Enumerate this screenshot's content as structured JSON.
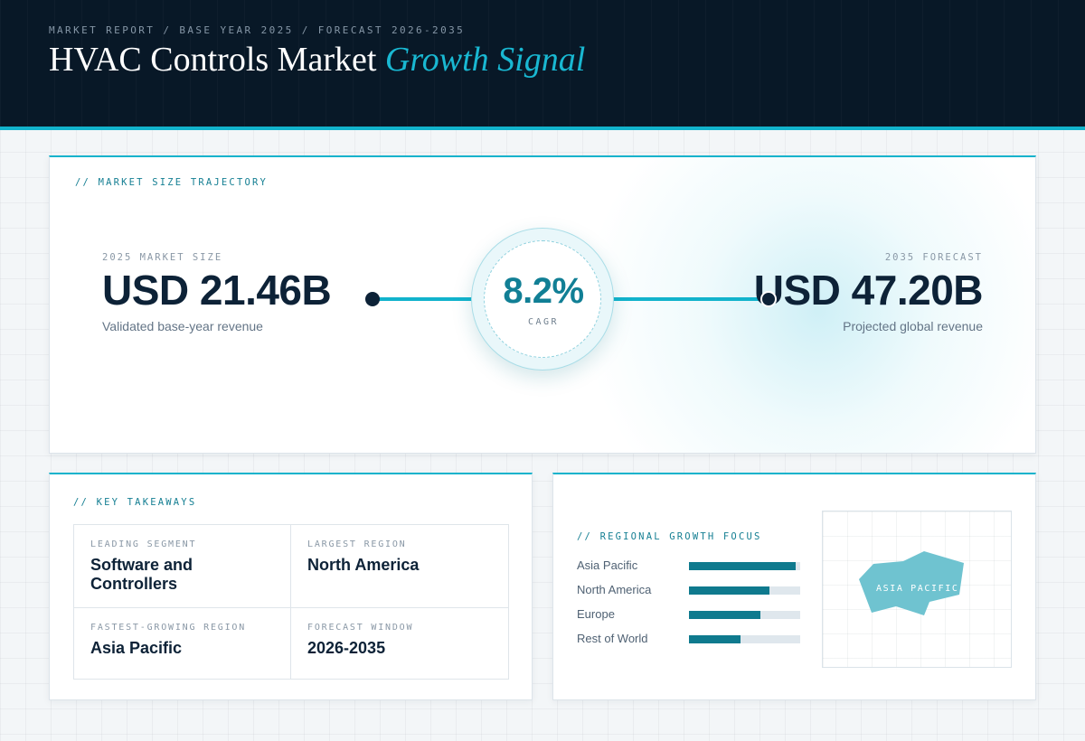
{
  "header": {
    "eyebrow": "MARKET REPORT / BASE YEAR 2025 / FORECAST 2026-2035",
    "title_main": "HVAC Controls Market",
    "title_accent": "Growth Signal"
  },
  "trajectory": {
    "label": "// MARKET SIZE TRAJECTORY",
    "start": {
      "caption": "2025 MARKET SIZE",
      "value": "USD 21.46B",
      "note": "Validated base-year revenue"
    },
    "end": {
      "caption": "2035 FORECAST",
      "value": "USD 47.20B",
      "note": "Projected global revenue"
    },
    "cagr": {
      "value": "8.2%",
      "label": "CAGR"
    }
  },
  "takeaways": {
    "label": "// KEY TAKEAWAYS",
    "items": [
      {
        "key": "LEADING SEGMENT",
        "value": "Software and Controllers"
      },
      {
        "key": "LARGEST REGION",
        "value": "North America"
      },
      {
        "key": "FASTEST-GROWING REGION",
        "value": "Asia Pacific"
      },
      {
        "key": "FORECAST WINDOW",
        "value": "2026-2035"
      }
    ]
  },
  "regional": {
    "label": "// REGIONAL GROWTH FOCUS",
    "map_label": "ASIA PACIFIC"
  },
  "chart_data": {
    "type": "bar",
    "orientation": "horizontal",
    "categories": [
      "Asia Pacific",
      "North America",
      "Europe",
      "Rest of World"
    ],
    "values": [
      0.96,
      0.72,
      0.64,
      0.46
    ],
    "xlim": [
      0,
      1
    ],
    "colors": {
      "fill": "#0f7a8e",
      "track": "#dfe7ed"
    }
  }
}
